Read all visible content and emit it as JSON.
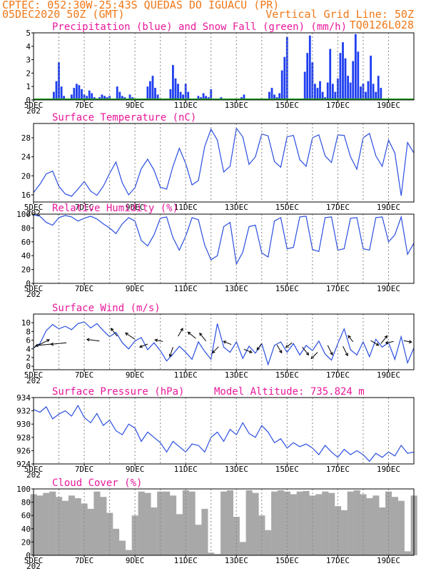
{
  "header": {
    "line1": "CPTEC:  052:30W-25:43S  QUEDAS DO IGUACU (PR)",
    "line2": "05DEC2020 50Z (GMT)",
    "grid_note": "Vertical Grid Line: 50Z",
    "code": "TQ0126L028"
  },
  "date_labels": [
    "5DEC",
    "7DEC",
    "9DEC",
    "11DEC",
    "13DEC",
    "15DEC",
    "17DEC",
    "19DEC"
  ],
  "year_stub": "202",
  "colors": {
    "header": "#f07818",
    "title": "#e8189a",
    "line": "#2a4ee0",
    "bars": "#1f3ff0",
    "snow": "#1fa01f",
    "cloud": "#a8a8a8"
  },
  "chart_data": [
    {
      "type": "bar",
      "title": "Precipitation (blue) and Snow Fall (green) (mm/h)",
      "xlim": [
        0,
        15
      ],
      "ylim": [
        0,
        5
      ],
      "yticks": [
        0,
        1,
        2,
        3,
        4,
        5
      ],
      "series": [
        {
          "name": "Precipitation",
          "x": [
            0.8,
            0.9,
            1.0,
            1.1,
            1.2,
            1.5,
            1.6,
            1.7,
            1.8,
            1.9,
            2.0,
            2.1,
            2.2,
            2.3,
            2.4,
            2.6,
            2.7,
            2.8,
            2.9,
            3.0,
            3.1,
            3.3,
            3.4,
            3.5,
            3.6,
            3.8,
            3.9,
            4.5,
            4.6,
            4.7,
            4.8,
            4.9,
            5.4,
            5.5,
            5.6,
            5.7,
            5.8,
            5.9,
            6.0,
            6.1,
            6.5,
            6.6,
            6.7,
            6.8,
            6.9,
            7.0,
            7.4,
            8.2,
            8.3,
            9.3,
            9.4,
            9.5,
            9.6,
            9.7,
            9.8,
            9.9,
            10.0,
            10.7,
            10.8,
            10.9,
            11.0,
            11.1,
            11.2,
            11.3,
            11.4,
            11.5,
            11.6,
            11.7,
            11.8,
            11.9,
            12.0,
            12.1,
            12.2,
            12.3,
            12.4,
            12.5,
            12.6,
            12.7,
            12.8,
            12.9,
            13.0,
            13.1,
            13.2,
            13.3,
            13.4,
            13.5,
            13.6,
            13.7
          ],
          "values": [
            0.6,
            1.4,
            2.8,
            1.0,
            0.3,
            0.4,
            0.9,
            1.2,
            1.1,
            0.8,
            0.4,
            0.3,
            0.7,
            0.5,
            0.2,
            0.2,
            0.4,
            0.3,
            0.2,
            0.3,
            0.1,
            1.0,
            0.6,
            0.3,
            0.2,
            0.4,
            0.2,
            1.0,
            1.4,
            1.8,
            0.9,
            0.4,
            0.8,
            2.6,
            1.6,
            1.2,
            0.6,
            0.4,
            1.2,
            0.6,
            0.3,
            0.2,
            0.5,
            0.3,
            0.2,
            0.8,
            0.2,
            0.2,
            0.4,
            0.6,
            0.9,
            0.4,
            0.2,
            0.5,
            2.2,
            3.2,
            4.7,
            2.1,
            3.5,
            4.8,
            2.8,
            1.2,
            0.9,
            1.4,
            0.6,
            0.2,
            1.3,
            3.8,
            1.2,
            0.6,
            1.6,
            3.5,
            4.3,
            3.1,
            1.8,
            1.3,
            2.9,
            4.9,
            3.6,
            1.0,
            1.2,
            0.6,
            1.4,
            3.3,
            1.2,
            0.6,
            1.8,
            0.9
          ]
        },
        {
          "name": "Snow Fall",
          "x": [
            0,
            15
          ],
          "values": [
            0,
            0
          ]
        }
      ]
    },
    {
      "type": "line",
      "title": "Surface Temperature (nC)",
      "xlim": [
        0,
        15
      ],
      "ylim": [
        14.5,
        31
      ],
      "yticks": [
        16,
        20,
        24,
        28
      ],
      "x": [
        0,
        0.25,
        0.5,
        0.75,
        1,
        1.25,
        1.5,
        1.75,
        2,
        2.25,
        2.5,
        2.75,
        3,
        3.25,
        3.5,
        3.75,
        4,
        4.25,
        4.5,
        4.75,
        5,
        5.25,
        5.5,
        5.75,
        6,
        6.25,
        6.5,
        6.75,
        7,
        7.25,
        7.5,
        7.75,
        8,
        8.25,
        8.5,
        8.75,
        9,
        9.25,
        9.5,
        9.75,
        10,
        10.25,
        10.5,
        10.75,
        11,
        11.25,
        11.5,
        11.75,
        12,
        12.25,
        12.5,
        12.75,
        13,
        13.25,
        13.5,
        13.75,
        14,
        14.25,
        14.5,
        14.75,
        15
      ],
      "values": [
        16.5,
        18.2,
        20.4,
        21.0,
        17.8,
        16.2,
        15.7,
        17.2,
        18.8,
        16.8,
        15.9,
        17.8,
        20.5,
        22.9,
        18.5,
        16.0,
        17.5,
        21.5,
        23.5,
        21.2,
        17.6,
        17.2,
        22.0,
        25.8,
        22.6,
        18.1,
        19.0,
        26.2,
        29.8,
        27.5,
        20.8,
        22.0,
        30.0,
        28.2,
        22.4,
        24.0,
        28.8,
        28.4,
        23.0,
        21.8,
        28.2,
        28.5,
        23.4,
        22.0,
        28.0,
        28.6,
        24.2,
        22.8,
        28.6,
        28.5,
        24.0,
        21.4,
        28.0,
        28.9,
        24.2,
        22.0,
        27.5,
        24.8,
        15.8,
        27.0,
        24.8
      ]
    },
    {
      "type": "line",
      "title": "Relative Humidity (%)",
      "xlim": [
        0,
        15
      ],
      "ylim": [
        0,
        100
      ],
      "yticks": [
        0,
        20,
        40,
        60,
        80,
        100
      ],
      "x": [
        0,
        0.25,
        0.5,
        0.75,
        1,
        1.25,
        1.5,
        1.75,
        2,
        2.25,
        2.5,
        2.75,
        3,
        3.25,
        3.5,
        3.75,
        4,
        4.25,
        4.5,
        4.75,
        5,
        5.25,
        5.5,
        5.75,
        6,
        6.25,
        6.5,
        6.75,
        7,
        7.25,
        7.5,
        7.75,
        8,
        8.25,
        8.5,
        8.75,
        9,
        9.25,
        9.5,
        9.75,
        10,
        10.25,
        10.5,
        10.75,
        11,
        11.25,
        11.5,
        11.75,
        12,
        12.25,
        12.5,
        12.75,
        13,
        13.25,
        13.5,
        13.75,
        14,
        14.25,
        14.5,
        14.75,
        15
      ],
      "values": [
        99,
        97,
        88,
        84,
        95,
        98,
        96,
        90,
        94,
        97,
        93,
        86,
        80,
        72,
        86,
        95,
        90,
        62,
        54,
        70,
        94,
        96,
        66,
        48,
        68,
        95,
        92,
        55,
        34,
        40,
        82,
        88,
        28,
        45,
        82,
        84,
        44,
        38,
        90,
        95,
        50,
        52,
        96,
        97,
        49,
        46,
        95,
        96,
        48,
        50,
        94,
        95,
        50,
        48,
        95,
        96,
        60,
        70,
        96,
        42,
        58
      ]
    },
    {
      "type": "line",
      "title": "Surface Wind (m/s)",
      "xlim": [
        0,
        15
      ],
      "ylim": [
        -0.8,
        12
      ],
      "yticks": [
        0,
        2,
        4,
        6,
        8,
        10
      ],
      "x": [
        0,
        0.25,
        0.5,
        0.75,
        1,
        1.25,
        1.5,
        1.75,
        2,
        2.25,
        2.5,
        2.75,
        3,
        3.25,
        3.5,
        3.75,
        4,
        4.25,
        4.5,
        4.75,
        5,
        5.25,
        5.5,
        5.75,
        6,
        6.25,
        6.5,
        6.75,
        7,
        7.25,
        7.5,
        7.75,
        8,
        8.25,
        8.5,
        8.75,
        9,
        9.25,
        9.5,
        9.75,
        10,
        10.25,
        10.5,
        10.75,
        11,
        11.25,
        11.5,
        11.75,
        12,
        12.25,
        12.5,
        12.75,
        13,
        13.25,
        13.5,
        13.75,
        14,
        14.25,
        14.5,
        14.75,
        15
      ],
      "values": [
        4.2,
        5.2,
        8.2,
        9.6,
        8.6,
        9.2,
        8.4,
        9.8,
        10.2,
        8.8,
        9.8,
        8.2,
        6.8,
        7.8,
        5.4,
        4.0,
        5.8,
        6.6,
        3.8,
        5.4,
        3.6,
        1.2,
        2.8,
        4.6,
        3.2,
        1.6,
        5.6,
        3.4,
        1.6,
        9.8,
        4.4,
        3.2,
        5.6,
        1.8,
        4.6,
        3.0,
        5.2,
        0.4,
        4.8,
        5.6,
        3.2,
        5.2,
        2.6,
        4.8,
        3.6,
        5.8,
        2.8,
        1.4,
        5.2,
        8.6,
        3.8,
        2.6,
        5.6,
        2.2,
        6.2,
        4.4,
        5.4,
        1.6,
        6.8,
        0.8,
        4.2
      ],
      "arrows": [
        {
          "x": 0.0,
          "y": 4.3,
          "u": 1.0,
          "v": 0.5
        },
        {
          "x": 0.7,
          "y": 5.1,
          "u": -1.0,
          "v": -0.1
        },
        {
          "x": 1.3,
          "y": 5.4,
          "u": -1.0,
          "v": -0.1
        },
        {
          "x": 2.6,
          "y": 5.8,
          "u": -0.8,
          "v": 0.1
        },
        {
          "x": 3.3,
          "y": 6.9,
          "u": -0.4,
          "v": 0.5
        },
        {
          "x": 4.0,
          "y": 6.2,
          "u": -0.6,
          "v": 0.4
        },
        {
          "x": 4.5,
          "y": 5.1,
          "u": -0.5,
          "v": -0.2
        },
        {
          "x": 5.1,
          "y": 5.7,
          "u": -0.5,
          "v": 0.1
        },
        {
          "x": 5.5,
          "y": 4.4,
          "u": -0.2,
          "v": -0.6
        },
        {
          "x": 5.7,
          "y": 6.9,
          "u": 0.3,
          "v": 0.5
        },
        {
          "x": 6.4,
          "y": 6.4,
          "u": -0.5,
          "v": 0.4
        },
        {
          "x": 6.8,
          "y": 5.8,
          "u": -0.4,
          "v": 0.5
        },
        {
          "x": 7.3,
          "y": 4.5,
          "u": -0.4,
          "v": -0.4
        },
        {
          "x": 7.8,
          "y": 5.0,
          "u": -0.5,
          "v": 0.2
        },
        {
          "x": 8.3,
          "y": 3.9,
          "u": 0.5,
          "v": -0.2
        },
        {
          "x": 9.0,
          "y": 5.2,
          "u": -0.3,
          "v": -0.4
        },
        {
          "x": 9.6,
          "y": 4.9,
          "u": 0.3,
          "v": -0.5
        },
        {
          "x": 10.2,
          "y": 5.4,
          "u": -0.4,
          "v": -0.3
        },
        {
          "x": 10.6,
          "y": 4.4,
          "u": 0.4,
          "v": -0.5
        },
        {
          "x": 11.2,
          "y": 3.2,
          "u": -0.4,
          "v": -0.4
        },
        {
          "x": 11.6,
          "y": 4.8,
          "u": 0.3,
          "v": -0.6
        },
        {
          "x": 12.2,
          "y": 4.6,
          "u": 0.3,
          "v": -0.6
        },
        {
          "x": 12.6,
          "y": 5.6,
          "u": -0.3,
          "v": 0.4
        },
        {
          "x": 13.3,
          "y": 5.9,
          "u": 0.5,
          "v": -0.3
        },
        {
          "x": 13.7,
          "y": 5.2,
          "u": 0.4,
          "v": 0.5
        },
        {
          "x": 14.2,
          "y": 5.7,
          "u": -0.5,
          "v": -0.1
        },
        {
          "x": 14.6,
          "y": 5.9,
          "u": 0.5,
          "v": -0.1
        }
      ]
    },
    {
      "type": "line",
      "title": "Surface Pressure (hPa)",
      "subtitle": "Model Altitude: 735.824 m",
      "xlim": [
        0,
        15
      ],
      "ylim": [
        924,
        934
      ],
      "yticks": [
        924,
        926,
        928,
        930,
        932,
        934
      ],
      "x": [
        0,
        0.25,
        0.5,
        0.75,
        1,
        1.25,
        1.5,
        1.75,
        2,
        2.25,
        2.5,
        2.75,
        3,
        3.25,
        3.5,
        3.75,
        4,
        4.25,
        4.5,
        4.75,
        5,
        5.25,
        5.5,
        5.75,
        6,
        6.25,
        6.5,
        6.75,
        7,
        7.25,
        7.5,
        7.75,
        8,
        8.25,
        8.5,
        8.75,
        9,
        9.25,
        9.5,
        9.75,
        10,
        10.25,
        10.5,
        10.75,
        11,
        11.25,
        11.5,
        11.75,
        12,
        12.25,
        12.5,
        12.75,
        13,
        13.25,
        13.5,
        13.75,
        14,
        14.25,
        14.5,
        14.75,
        15
      ],
      "values": [
        932.2,
        931.8,
        932.6,
        930.8,
        931.5,
        932.0,
        931.2,
        932.8,
        931.0,
        930.2,
        931.6,
        929.8,
        930.6,
        929.0,
        928.4,
        930.0,
        929.4,
        927.4,
        928.8,
        928.0,
        927.2,
        925.8,
        927.4,
        926.6,
        925.8,
        927.0,
        926.8,
        925.8,
        928.0,
        928.8,
        927.4,
        929.2,
        928.4,
        930.2,
        928.6,
        928.0,
        929.8,
        928.8,
        927.2,
        927.8,
        926.4,
        927.2,
        926.6,
        927.0,
        926.4,
        925.4,
        926.8,
        925.8,
        925.0,
        926.2,
        925.4,
        926.0,
        925.4,
        924.4,
        925.6,
        925.0,
        925.8,
        925.2,
        926.8,
        925.6,
        925.8
      ]
    },
    {
      "type": "bar",
      "title": "Cloud Cover (%)",
      "xlim": [
        0,
        15
      ],
      "ylim": [
        0,
        100
      ],
      "yticks": [
        0,
        20,
        40,
        60,
        80,
        100
      ],
      "x": [
        0,
        0.25,
        0.5,
        0.75,
        1,
        1.25,
        1.5,
        1.75,
        2,
        2.25,
        2.5,
        2.75,
        3,
        3.25,
        3.5,
        3.75,
        4,
        4.25,
        4.5,
        4.75,
        5,
        5.25,
        5.5,
        5.75,
        6,
        6.25,
        6.5,
        6.75,
        7,
        7.25,
        7.5,
        7.75,
        8,
        8.25,
        8.5,
        8.75,
        9,
        9.25,
        9.5,
        9.75,
        10,
        10.25,
        10.5,
        10.75,
        11,
        11.25,
        11.5,
        11.75,
        12,
        12.25,
        12.5,
        12.75,
        13,
        13.25,
        13.5,
        13.75,
        14,
        14.25,
        14.5,
        14.75,
        15
      ],
      "values": [
        92,
        90,
        94,
        96,
        88,
        82,
        90,
        86,
        78,
        70,
        96,
        88,
        64,
        40,
        22,
        8,
        60,
        96,
        94,
        72,
        96,
        96,
        90,
        62,
        98,
        96,
        46,
        70,
        4,
        2,
        96,
        98,
        58,
        20,
        98,
        94,
        60,
        38,
        96,
        98,
        96,
        92,
        96,
        97,
        90,
        92,
        96,
        94,
        74,
        68,
        96,
        98,
        92,
        86,
        90,
        72,
        96,
        88,
        82,
        6,
        90
      ]
    }
  ]
}
